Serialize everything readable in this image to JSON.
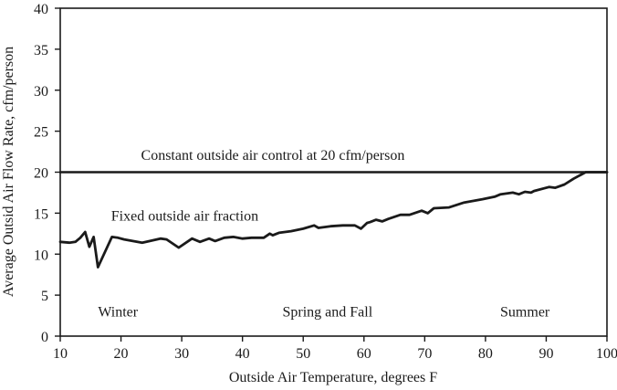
{
  "chart_data": {
    "type": "line",
    "xlabel": "Outside Air Temperature, degrees F",
    "ylabel": "Average Outsid Air Flow Rate, cfm/person",
    "xlim": [
      10,
      100
    ],
    "ylim": [
      0,
      40
    ],
    "xticks": [
      10,
      20,
      30,
      40,
      50,
      60,
      70,
      80,
      90,
      100
    ],
    "yticks": [
      0,
      5,
      10,
      15,
      20,
      25,
      30,
      35,
      40
    ],
    "grid": false,
    "colors": {
      "line": "#1a1a1a",
      "axis": "#1a1a1a",
      "text": "#1a1a1a",
      "background": "#ffffff"
    },
    "series": [
      {
        "name": "Constant outside air control at 20 cfm/person",
        "x": [
          10,
          100
        ],
        "y": [
          20,
          20
        ]
      },
      {
        "name": "Fixed outside air fraction",
        "x": [
          10,
          11.5,
          12.5,
          13.3,
          14.1,
          14.8,
          15.5,
          16.2,
          18.5,
          19.5,
          20.5,
          23.5,
          26.5,
          27.5,
          29.5,
          31.7,
          33,
          34.5,
          35.5,
          37,
          38.5,
          40,
          41.5,
          43.5,
          44.5,
          45,
          46,
          48,
          50,
          51.8,
          52.5,
          54.5,
          56.5,
          58.5,
          59.5,
          60.5,
          61,
          62,
          63,
          64,
          66,
          67.5,
          69.5,
          70.5,
          71.5,
          74,
          76.5,
          79.5,
          81.5,
          82.5,
          84.5,
          85.5,
          86.5,
          87.5,
          88,
          90.5,
          91.5,
          93,
          94.5,
          96.5,
          100
        ],
        "y": [
          11.5,
          11.4,
          11.5,
          12.0,
          12.7,
          10.9,
          12.1,
          8.4,
          12.1,
          12.0,
          11.8,
          11.4,
          11.9,
          11.8,
          10.8,
          11.9,
          11.5,
          11.9,
          11.6,
          12.0,
          12.1,
          11.9,
          12.0,
          12.0,
          12.5,
          12.3,
          12.6,
          12.8,
          13.1,
          13.5,
          13.2,
          13.4,
          13.5,
          13.5,
          13.1,
          13.8,
          13.9,
          14.2,
          14.0,
          14.3,
          14.8,
          14.8,
          15.3,
          15.0,
          15.6,
          15.7,
          16.3,
          16.7,
          17.0,
          17.3,
          17.5,
          17.3,
          17.6,
          17.5,
          17.7,
          18.2,
          18.1,
          18.5,
          19.2,
          20.0,
          20.0
        ]
      }
    ],
    "annotations": [
      {
        "text": "Constant outside air control at 20 cfm/person",
        "x": 45,
        "y": 21.5
      },
      {
        "text": "Fixed outside air fraction",
        "x": 30.5,
        "y": 14.1
      },
      {
        "text": "Winter",
        "x": 19.5,
        "y": 2.4
      },
      {
        "text": "Spring and Fall",
        "x": 54,
        "y": 2.4
      },
      {
        "text": "Summer",
        "x": 86.5,
        "y": 2.4
      }
    ]
  }
}
